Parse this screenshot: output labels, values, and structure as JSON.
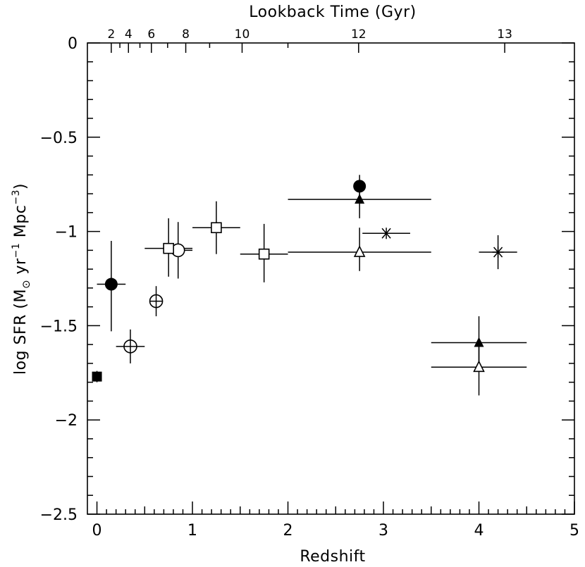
{
  "chart_data": {
    "type": "scatter",
    "title": "",
    "xlabel": "Redshift",
    "ylabel": "log SFR (M⊙ yr⁻¹ Mpc⁻³)",
    "ylabel_parts": {
      "main": "log SFR (M",
      "sun": "⊙",
      "unit1": " yr",
      "exp1": "−1",
      "unit2": " Mpc",
      "exp2": "−3",
      "close": ")"
    },
    "top_axis_label": "Lookback Time (Gyr)",
    "xlim": [
      -0.1,
      5.0
    ],
    "ylim": [
      -2.5,
      0.0
    ],
    "x_ticks": [
      {
        "value": 0,
        "label": "0"
      },
      {
        "value": 1,
        "label": "1"
      },
      {
        "value": 2,
        "label": "2"
      },
      {
        "value": 3,
        "label": "3"
      },
      {
        "value": 4,
        "label": "4"
      },
      {
        "value": 5,
        "label": "5"
      }
    ],
    "y_ticks": [
      {
        "value": 0,
        "label": "0"
      },
      {
        "value": -0.5,
        "label": "−0.5"
      },
      {
        "value": -1,
        "label": "−1"
      },
      {
        "value": -1.5,
        "label": "−1.5"
      },
      {
        "value": -2,
        "label": "−2"
      },
      {
        "value": -2.5,
        "label": "−2.5"
      }
    ],
    "top_ticks": [
      {
        "label": "2",
        "z": 0.15
      },
      {
        "label": "4",
        "z": 0.33
      },
      {
        "label": "6",
        "z": 0.57
      },
      {
        "label": "8",
        "z": 0.93
      },
      {
        "label": "10",
        "z": 1.52
      },
      {
        "label": "12",
        "z": 2.74
      },
      {
        "label": "13",
        "z": 4.27
      }
    ],
    "series": [
      {
        "name": "filled square",
        "marker": "square-filled",
        "points": [
          {
            "x": 0.0,
            "y": -1.77,
            "xerr": [
              0.05,
              0.05
            ],
            "yerr": [
              0.03,
              0.03
            ]
          }
        ]
      },
      {
        "name": "filled circle",
        "marker": "circle-filled",
        "points": [
          {
            "x": 0.15,
            "y": -1.28,
            "xerr": [
              0.15,
              0.15
            ],
            "yerr": [
              0.25,
              0.23
            ]
          },
          {
            "x": 2.75,
            "y": -0.76,
            "xerr": [
              0,
              0
            ],
            "yerr": [
              0.06,
              0.06
            ]
          }
        ]
      },
      {
        "name": "crossed circle",
        "marker": "circle-crossed",
        "points": [
          {
            "x": 0.35,
            "y": -1.61,
            "xerr": [
              0.15,
              0.15
            ],
            "yerr": [
              0.09,
              0.09
            ]
          },
          {
            "x": 0.62,
            "y": -1.37,
            "xerr": [
              0.07,
              0.07
            ],
            "yerr": [
              0.08,
              0.08
            ]
          }
        ]
      },
      {
        "name": "open circle",
        "marker": "circle-open",
        "points": [
          {
            "x": 0.85,
            "y": -1.1,
            "xerr": [
              0.15,
              0.15
            ],
            "yerr": [
              0.15,
              0.15
            ]
          }
        ]
      },
      {
        "name": "open square",
        "marker": "square-open",
        "points": [
          {
            "x": 0.75,
            "y": -1.09,
            "xerr": [
              0.25,
              0.25
            ],
            "yerr": [
              0.15,
              0.16
            ]
          },
          {
            "x": 1.25,
            "y": -0.98,
            "xerr": [
              0.25,
              0.25
            ],
            "yerr": [
              0.14,
              0.14
            ]
          },
          {
            "x": 1.75,
            "y": -1.12,
            "xerr": [
              0.25,
              0.25
            ],
            "yerr": [
              0.15,
              0.16
            ]
          }
        ]
      },
      {
        "name": "filled triangle",
        "marker": "triangle-filled",
        "points": [
          {
            "x": 2.75,
            "y": -0.83,
            "xerr": [
              0.75,
              0.75
            ],
            "yerr": [
              0.1,
              0.1
            ]
          },
          {
            "x": 4.0,
            "y": -1.59,
            "xerr": [
              0.5,
              0.5
            ],
            "yerr": [
              0.14,
              0.14
            ]
          }
        ]
      },
      {
        "name": "open triangle",
        "marker": "triangle-open",
        "points": [
          {
            "x": 2.75,
            "y": -1.11,
            "xerr": [
              0.75,
              0.75
            ],
            "yerr": [
              0.1,
              0.13
            ]
          },
          {
            "x": 4.0,
            "y": -1.72,
            "xerr": [
              0.5,
              0.5
            ],
            "yerr": [
              0.15,
              0.15
            ]
          }
        ]
      },
      {
        "name": "asterisk",
        "marker": "asterisk",
        "points": [
          {
            "x": 3.03,
            "y": -1.01,
            "xerr": [
              0.25,
              0.25
            ],
            "yerr": [
              0,
              0
            ]
          },
          {
            "x": 4.2,
            "y": -1.11,
            "xerr": [
              0.2,
              0.2
            ],
            "yerr": [
              0.09,
              0.09
            ]
          }
        ]
      }
    ]
  }
}
